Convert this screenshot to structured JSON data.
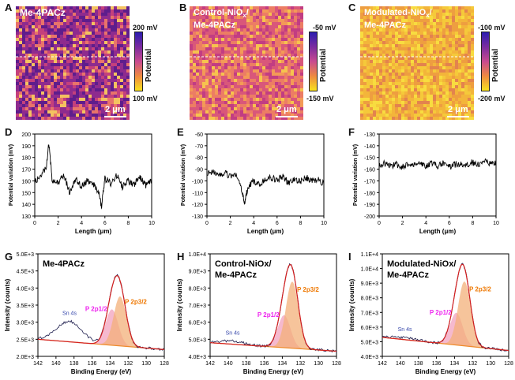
{
  "panel_letters": [
    "A",
    "B",
    "C",
    "D",
    "E",
    "F",
    "G",
    "H",
    "I"
  ],
  "maps": [
    {
      "title_l1": "Me-4PACz",
      "title_l2": "",
      "cbar_top": "200 mV",
      "cbar_bot": "100 mV",
      "cbar_label": "Potential",
      "scale": "2 μm"
    },
    {
      "title_l1": "Control-NiOx/",
      "title_l2": "Me-4PACz",
      "cbar_top": "-50 mV",
      "cbar_bot": "-150 mV",
      "cbar_label": "Potential",
      "scale": "2 μm"
    },
    {
      "title_l1": "Modulated-NiOx/",
      "title_l2": "Me-4PACz",
      "cbar_top": "-100 mV",
      "cbar_bot": "-200 mV",
      "cbar_label": "Potential",
      "scale": "2 μm"
    }
  ],
  "chart_data": [
    {
      "panel": "D",
      "type": "line",
      "xlabel": "Length (μm)",
      "ylabel": "Potential variation (mV)",
      "xlim": [
        0,
        10
      ],
      "ylim": [
        130,
        200
      ],
      "xticks": [
        0,
        2,
        4,
        6,
        8,
        10
      ],
      "yticks": [
        130,
        140,
        150,
        160,
        170,
        180,
        190,
        200
      ],
      "series": [
        {
          "x": [
            0,
            0.5,
            1,
            1.2,
            1.5,
            2,
            2.5,
            3,
            3.5,
            4,
            4.5,
            5,
            5.5,
            5.7,
            6,
            6.5,
            7,
            7.5,
            8,
            8.5,
            9,
            9.5,
            10
          ],
          "y": [
            160,
            163,
            172,
            193,
            160,
            158,
            165,
            150,
            162,
            155,
            160,
            158,
            150,
            137,
            162,
            158,
            165,
            155,
            160,
            157,
            163,
            156,
            160
          ]
        }
      ]
    },
    {
      "panel": "E",
      "type": "line",
      "xlabel": "Length (μm)",
      "ylabel": "Potential variation (mV)",
      "xlim": [
        0,
        10
      ],
      "ylim": [
        -130,
        -60
      ],
      "xticks": [
        0,
        2,
        4,
        6,
        8,
        10
      ],
      "yticks": [
        -60,
        -70,
        -80,
        -90,
        -100,
        -110,
        -120,
        -130
      ],
      "series": [
        {
          "x": [
            0,
            0.5,
            1,
            1.5,
            2,
            2.5,
            3,
            3.2,
            3.5,
            4,
            4.5,
            5,
            5.5,
            6,
            6.5,
            7,
            7.5,
            8,
            8.5,
            9,
            9.5,
            10
          ],
          "y": [
            -93,
            -92,
            -95,
            -93,
            -96,
            -94,
            -108,
            -120,
            -105,
            -100,
            -103,
            -98,
            -97,
            -100,
            -96,
            -102,
            -99,
            -101,
            -97,
            -100,
            -98,
            -103
          ]
        }
      ]
    },
    {
      "panel": "F",
      "type": "line",
      "xlabel": "Length (μm)",
      "ylabel": "Potential variation (mV)",
      "xlim": [
        0,
        10
      ],
      "ylim": [
        -200,
        -130
      ],
      "xticks": [
        0,
        2,
        4,
        6,
        8,
        10
      ],
      "yticks": [
        -130,
        -140,
        -150,
        -160,
        -170,
        -180,
        -190,
        -200
      ],
      "series": [
        {
          "x": [
            0,
            0.5,
            1,
            1.5,
            2,
            2.5,
            3,
            3.5,
            4,
            4.5,
            5,
            5.5,
            6,
            6.5,
            7,
            7.5,
            8,
            8.5,
            9,
            9.5,
            10
          ],
          "y": [
            -157,
            -155,
            -157,
            -156,
            -158,
            -155,
            -157,
            -156,
            -158,
            -155,
            -157,
            -155,
            -158,
            -156,
            -155,
            -157,
            -154,
            -156,
            -153,
            -156,
            -155
          ]
        }
      ]
    },
    {
      "panel": "G",
      "type": "line",
      "title": "Me-4PACz",
      "xlabel": "Binding Energy (eV)",
      "ylabel": "Intensity (counts)",
      "xlim": [
        142,
        128
      ],
      "ylim": [
        2000,
        5000
      ],
      "xticks": [
        142,
        140,
        138,
        136,
        134,
        132,
        130,
        128
      ],
      "yticks": [
        2000,
        2500,
        3000,
        3500,
        4000,
        4500,
        5000
      ],
      "ytick_labels": [
        "2.0E+3",
        "2.5E+3",
        "3.0E+3",
        "3.5E+3",
        "4.0E+3",
        "4.5E+3",
        "5.0E+3"
      ],
      "annotations": [
        "Sn 4s",
        "P 2p1/2",
        "P 2p3/2"
      ],
      "peaks": {
        "p12_center": 133.8,
        "p12_height": 1050,
        "p32_center": 132.9,
        "p32_height": 1450,
        "sn_center": 138.5,
        "sn_height": 600,
        "width": 0.7
      },
      "baseline": [
        2500,
        2200
      ]
    },
    {
      "panel": "H",
      "type": "line",
      "title": "Control-NiOx/ Me-4PACz",
      "xlabel": "Binding Energy (eV)",
      "ylabel": "Intensity (counts)",
      "xlim": [
        142,
        128
      ],
      "ylim": [
        4000,
        10000
      ],
      "xticks": [
        142,
        140,
        138,
        136,
        134,
        132,
        130,
        128
      ],
      "yticks": [
        4000,
        5000,
        6000,
        7000,
        8000,
        9000,
        10000
      ],
      "ytick_labels": [
        "4.0E+3",
        "5.0E+3",
        "6.0E+3",
        "7.0E+3",
        "8.0E+3",
        "9.0E+3",
        "1.0E+4"
      ],
      "annotations": [
        "Sn 4s",
        "P 2p1/2",
        "P 2p3/2"
      ],
      "peaks": {
        "p12_center": 133.8,
        "p12_height": 1900,
        "p32_center": 132.9,
        "p32_height": 3900,
        "sn_center": 139.5,
        "sn_height": 180,
        "width": 0.7
      },
      "baseline": [
        4800,
        4300
      ]
    },
    {
      "panel": "I",
      "type": "line",
      "title": "Modulated-NiOx/ Me-4PACz",
      "xlabel": "Binding Energy (eV)",
      "ylabel": "Intensity (counts)",
      "xlim": [
        142,
        128
      ],
      "ylim": [
        4000,
        11000
      ],
      "xticks": [
        142,
        140,
        138,
        136,
        134,
        132,
        130,
        128
      ],
      "yticks": [
        4000,
        5000,
        6000,
        7000,
        8000,
        9000,
        10000,
        11000
      ],
      "ytick_labels": [
        "4.0E+3",
        "5.0E+3",
        "6.0E+3",
        "7.0E+3",
        "8.0E+3",
        "9.0E+3",
        "1.0E+4",
        "1.1E+4"
      ],
      "annotations": [
        "Sn 4s",
        "P 2p1/2",
        "P 2p3/2"
      ],
      "peaks": {
        "p12_center": 133.8,
        "p12_height": 2200,
        "p32_center": 132.9,
        "p32_height": 4400,
        "sn_center": 139.5,
        "sn_height": 150,
        "width": 0.7
      },
      "baseline": [
        5300,
        4400
      ]
    }
  ],
  "colors": {
    "data_line": "#000000",
    "sn_text": "#3344aa",
    "p12_text": "#ee22ee",
    "p32_text": "#ee7700",
    "p12_fill": "#f2a1bd",
    "p32_fill": "#f3b07a",
    "envelope": "#d32020",
    "bg_line": "#ee8a2a"
  }
}
